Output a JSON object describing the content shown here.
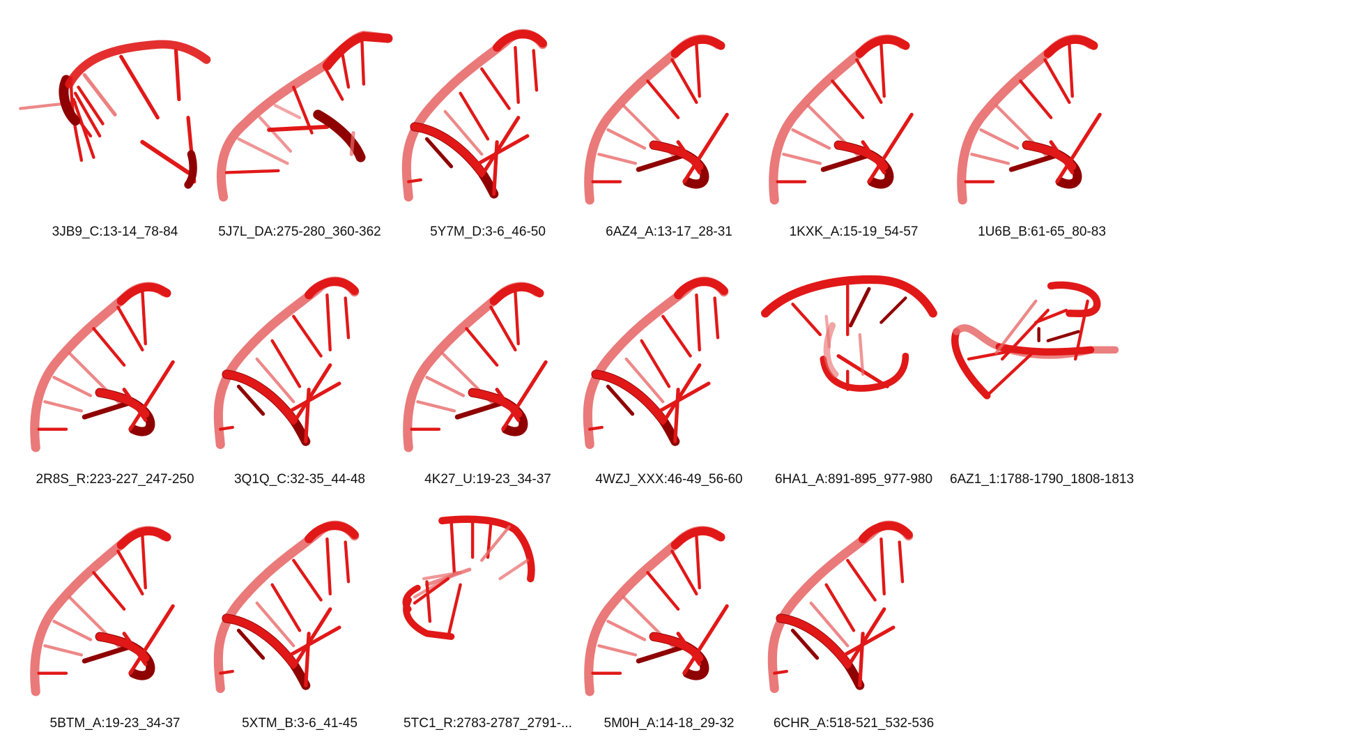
{
  "colors": {
    "strand_light": "#e86a6a",
    "strand_mid": "#e11818",
    "strand_dark": "#8f0000",
    "text": "#111111"
  },
  "structures": [
    {
      "label": "3JB9_C:13-14_78-84",
      "shape": "A"
    },
    {
      "label": "5J7L_DA:275-280_360-362",
      "shape": "B"
    },
    {
      "label": "5Y7M_D:3-6_46-50",
      "shape": "C"
    },
    {
      "label": "6AZ4_A:13-17_28-31",
      "shape": "D"
    },
    {
      "label": "1KXK_A:15-19_54-57",
      "shape": "D"
    },
    {
      "label": "1U6B_B:61-65_80-83",
      "shape": "D"
    },
    {
      "label": "2R8S_R:223-227_247-250",
      "shape": "D"
    },
    {
      "label": "3Q1Q_C:32-35_44-48",
      "shape": "C"
    },
    {
      "label": "4K27_U:19-23_34-37",
      "shape": "D"
    },
    {
      "label": "4WZJ_XXX:46-49_56-60",
      "shape": "C"
    },
    {
      "label": "6HA1_A:891-895_977-980",
      "shape": "E"
    },
    {
      "label": "6AZ1_1:1788-1790_1808-1813",
      "shape": "F"
    },
    {
      "label": "5BTM_A:19-23_34-37",
      "shape": "D"
    },
    {
      "label": "5XTM_B:3-6_41-45",
      "shape": "C"
    },
    {
      "label": "5TC1_R:2783-2787_2791-...",
      "shape": "G"
    },
    {
      "label": "5M0H_A:14-18_29-32",
      "shape": "D"
    },
    {
      "label": "6CHR_A:518-521_532-536",
      "shape": "C"
    }
  ]
}
